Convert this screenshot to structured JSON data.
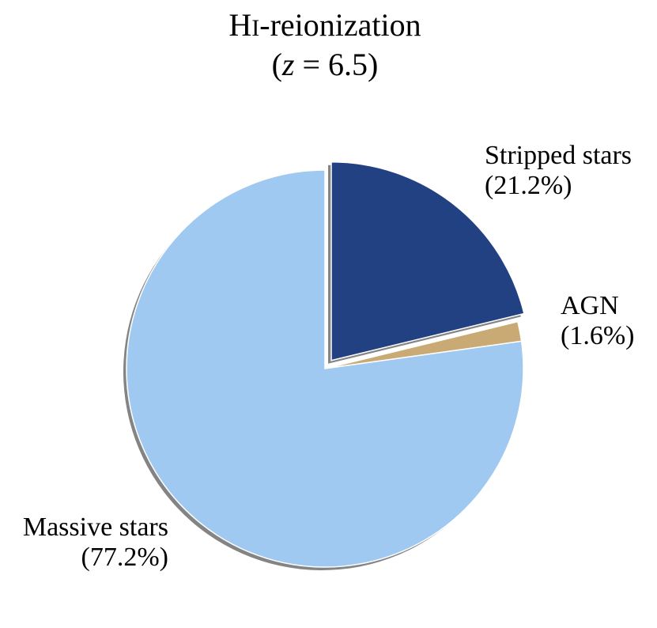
{
  "chart_data": {
    "type": "pie",
    "title": "HI-reionization",
    "title_line1_main": "H",
    "title_line1_sc": "I",
    "title_line1_rest": "-reionization",
    "subtitle": "(z = 6.5)",
    "subtitle_open": "(",
    "subtitle_var": "z",
    "subtitle_rest": " = 6.5)",
    "slices": [
      {
        "name": "Stripped stars",
        "pct_label": "(21.2%)",
        "value": 21.2,
        "color": "#224183",
        "exploded": true
      },
      {
        "name": "AGN",
        "pct_label": "(1.6%)",
        "value": 1.6,
        "color": "#c9aa75",
        "exploded": false
      },
      {
        "name": "Massive stars",
        "pct_label": "(77.2%)",
        "value": 77.2,
        "color": "#9fc9f0",
        "exploded": false
      }
    ],
    "start_angle": "top (12 o'clock)",
    "direction": "clockwise",
    "shadow": true
  }
}
